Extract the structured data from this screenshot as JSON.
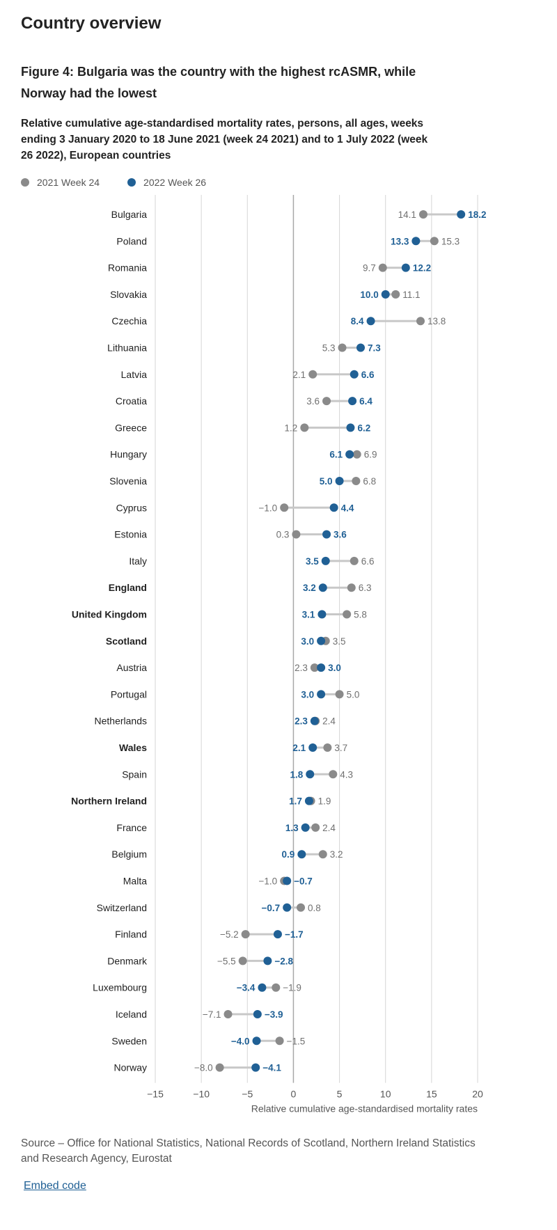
{
  "section_title": "Country overview",
  "figure": {
    "title": "Figure 4: Bulgaria was the country with the highest rcASMR, while Norway had the lowest",
    "subtitle": "Relative cumulative age-standardised mortality rates, persons, all ages, weeks ending 3 January 2020 to 18 June 2021 (week 24 2021) and to 1 July 2022 (week 26 2022), European countries"
  },
  "legend": [
    {
      "label": "2021 Week 24",
      "color": "#8a8a8a"
    },
    {
      "label": "2022 Week 26",
      "color": "#206095"
    }
  ],
  "chart_data": {
    "type": "dumbbell",
    "xlabel": "Relative cumulative age-standardised mortality rates",
    "xlim": [
      -15,
      20
    ],
    "xticks": [
      -15,
      -10,
      -5,
      0,
      5,
      10,
      15,
      20
    ],
    "xtick_labels": [
      "−15",
      "−10",
      "−5",
      "0",
      "5",
      "10",
      "15",
      "20"
    ],
    "grid": true,
    "series": [
      {
        "name": "2021 Week 24",
        "color": "#8a8a8a"
      },
      {
        "name": "2022 Week 26",
        "color": "#206095"
      }
    ],
    "rows": [
      {
        "country": "Bulgaria",
        "bold": false,
        "w2021": 14.1,
        "w2022": 18.2,
        "l2021": "14.1",
        "l2022": "18.2"
      },
      {
        "country": "Poland",
        "bold": false,
        "w2021": 15.3,
        "w2022": 13.3,
        "l2021": "15.3",
        "l2022": "13.3"
      },
      {
        "country": "Romania",
        "bold": false,
        "w2021": 9.7,
        "w2022": 12.2,
        "l2021": "9.7",
        "l2022": "12.2"
      },
      {
        "country": "Slovakia",
        "bold": false,
        "w2021": 11.1,
        "w2022": 10.0,
        "l2021": "11.1",
        "l2022": "10.0"
      },
      {
        "country": "Czechia",
        "bold": false,
        "w2021": 13.8,
        "w2022": 8.4,
        "l2021": "13.8",
        "l2022": "8.4"
      },
      {
        "country": "Lithuania",
        "bold": false,
        "w2021": 5.3,
        "w2022": 7.3,
        "l2021": "5.3",
        "l2022": "7.3"
      },
      {
        "country": "Latvia",
        "bold": false,
        "w2021": 2.1,
        "w2022": 6.6,
        "l2021": "2.1",
        "l2022": "6.6"
      },
      {
        "country": "Croatia",
        "bold": false,
        "w2021": 3.6,
        "w2022": 6.4,
        "l2021": "3.6",
        "l2022": "6.4"
      },
      {
        "country": "Greece",
        "bold": false,
        "w2021": 1.2,
        "w2022": 6.2,
        "l2021": "1.2",
        "l2022": "6.2"
      },
      {
        "country": "Hungary",
        "bold": false,
        "w2021": 6.9,
        "w2022": 6.1,
        "l2021": "6.9",
        "l2022": "6.1"
      },
      {
        "country": "Slovenia",
        "bold": false,
        "w2021": 6.8,
        "w2022": 5.0,
        "l2021": "6.8",
        "l2022": "5.0"
      },
      {
        "country": "Cyprus",
        "bold": false,
        "w2021": -1.0,
        "w2022": 4.4,
        "l2021": "−1.0",
        "l2022": "4.4"
      },
      {
        "country": "Estonia",
        "bold": false,
        "w2021": 0.3,
        "w2022": 3.6,
        "l2021": "0.3",
        "l2022": "3.6"
      },
      {
        "country": "Italy",
        "bold": false,
        "w2021": 6.6,
        "w2022": 3.5,
        "l2021": "6.6",
        "l2022": "3.5"
      },
      {
        "country": "England",
        "bold": true,
        "w2021": 6.3,
        "w2022": 3.2,
        "l2021": "6.3",
        "l2022": "3.2"
      },
      {
        "country": "United Kingdom",
        "bold": true,
        "w2021": 5.8,
        "w2022": 3.1,
        "l2021": "5.8",
        "l2022": "3.1"
      },
      {
        "country": "Scotland",
        "bold": true,
        "w2021": 3.5,
        "w2022": 3.0,
        "l2021": "3.5",
        "l2022": "3.0"
      },
      {
        "country": "Austria",
        "bold": false,
        "w2021": 2.3,
        "w2022": 3.0,
        "l2021": "2.3",
        "l2022": "3.0"
      },
      {
        "country": "Portugal",
        "bold": false,
        "w2021": 5.0,
        "w2022": 3.0,
        "l2021": "5.0",
        "l2022": "3.0"
      },
      {
        "country": "Netherlands",
        "bold": false,
        "w2021": 2.4,
        "w2022": 2.3,
        "l2021": "2.4",
        "l2022": "2.3"
      },
      {
        "country": "Wales",
        "bold": true,
        "w2021": 3.7,
        "w2022": 2.1,
        "l2021": "3.7",
        "l2022": "2.1"
      },
      {
        "country": "Spain",
        "bold": false,
        "w2021": 4.3,
        "w2022": 1.8,
        "l2021": "4.3",
        "l2022": "1.8"
      },
      {
        "country": "Northern Ireland",
        "bold": true,
        "w2021": 1.9,
        "w2022": 1.7,
        "l2021": "1.9",
        "l2022": "1.7"
      },
      {
        "country": "France",
        "bold": false,
        "w2021": 2.4,
        "w2022": 1.3,
        "l2021": "2.4",
        "l2022": "1.3"
      },
      {
        "country": "Belgium",
        "bold": false,
        "w2021": 3.2,
        "w2022": 0.9,
        "l2021": "3.2",
        "l2022": "0.9"
      },
      {
        "country": "Malta",
        "bold": false,
        "w2021": -1.0,
        "w2022": -0.7,
        "l2021": "−1.0",
        "l2022": "−0.7"
      },
      {
        "country": "Switzerland",
        "bold": false,
        "w2021": 0.8,
        "w2022": -0.7,
        "l2021": "0.8",
        "l2022": "−0.7"
      },
      {
        "country": "Finland",
        "bold": false,
        "w2021": -5.2,
        "w2022": -1.7,
        "l2021": "−5.2",
        "l2022": "−1.7"
      },
      {
        "country": "Denmark",
        "bold": false,
        "w2021": -5.5,
        "w2022": -2.8,
        "l2021": "−5.5",
        "l2022": "−2.8"
      },
      {
        "country": "Luxembourg",
        "bold": false,
        "w2021": -1.9,
        "w2022": -3.4,
        "l2021": "−1.9",
        "l2022": "−3.4"
      },
      {
        "country": "Iceland",
        "bold": false,
        "w2021": -7.1,
        "w2022": -3.9,
        "l2021": "−7.1",
        "l2022": "−3.9"
      },
      {
        "country": "Sweden",
        "bold": false,
        "w2021": -1.5,
        "w2022": -4.0,
        "l2021": "−1.5",
        "l2022": "−4.0"
      },
      {
        "country": "Norway",
        "bold": false,
        "w2021": -8.0,
        "w2022": -4.1,
        "l2021": "−8.0",
        "l2022": "−4.1"
      }
    ]
  },
  "source": "Source – Office for National Statistics, National Records of Scotland, Northern Ireland Statistics and Research Agency, Eurostat",
  "embed_label": "Embed code"
}
